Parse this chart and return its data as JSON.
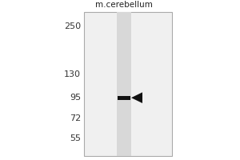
{
  "title": "m.cerebellum",
  "mw_markers": [
    250,
    130,
    95,
    72,
    55
  ],
  "band_mw": 95,
  "fig_bg": "#ffffff",
  "gel_panel_bg": "#f0f0f0",
  "gel_panel_border": "#aaaaaa",
  "lane_bg": "#d8d8d8",
  "band_color": "#111111",
  "arrow_color": "#111111",
  "marker_label_color": "#333333",
  "title_fontsize": 7.5,
  "marker_fontsize": 8
}
